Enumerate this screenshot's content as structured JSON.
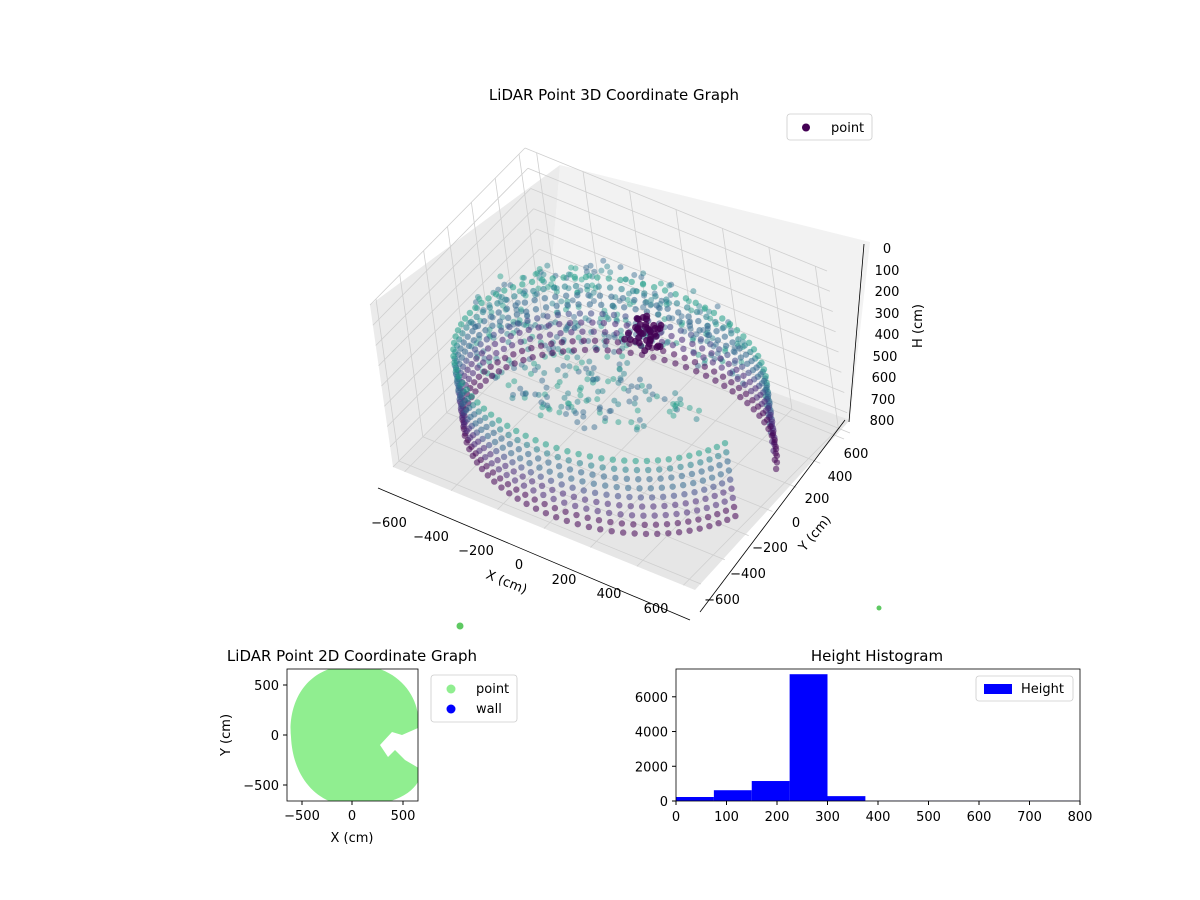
{
  "colors": {
    "point_3d_legend": "#440154",
    "scatter_2d_point": "#90ee90",
    "scatter_2d_wall": "#0000ff",
    "histogram_bar": "#0000ff",
    "stray_marker": "#5ec962"
  },
  "chart_data": [
    {
      "id": "scatter3d",
      "type": "scatter",
      "title": "LiDAR Point 3D Coordinate Graph",
      "xlabel": "X (cm)",
      "ylabel": "Y (cm)",
      "zlabel": "H (cm)",
      "xticks": [
        "−600",
        "−400",
        "−200",
        "0",
        "200",
        "400",
        "600"
      ],
      "yticks": [
        "−600",
        "−400",
        "−200",
        "0",
        "200",
        "400",
        "600"
      ],
      "zticks": [
        "0",
        "100",
        "200",
        "300",
        "400",
        "500",
        "600",
        "700",
        "800"
      ],
      "xlim": [
        -650,
        650
      ],
      "ylim": [
        -650,
        650
      ],
      "zlim": [
        0,
        800
      ],
      "z_inverted": true,
      "grid": true,
      "legend": {
        "position": "top-right",
        "entries": [
          "point"
        ]
      },
      "series": [
        {
          "name": "point",
          "description_shape": "ring of wall points around room perimeter at heights ~0-370 cm, interior floor points at ~250-300 cm, cluster near center at ~200 cm"
        }
      ]
    },
    {
      "id": "scatter2d",
      "type": "scatter",
      "title": "LiDAR Point 2D Coordinate Graph",
      "xlabel": "X (cm)",
      "ylabel": "Y (cm)",
      "xticks": [
        "−500",
        "0",
        "500"
      ],
      "yticks": [
        "500",
        "0",
        "−500"
      ],
      "xlim": [
        -650,
        650
      ],
      "ylim": [
        -650,
        650
      ],
      "legend": {
        "position": "outside-right",
        "entries": [
          "point",
          "wall"
        ]
      },
      "series": [
        {
          "name": "point",
          "shape": "filled disc radius ~600 cm with notch on right side"
        },
        {
          "name": "wall"
        }
      ]
    },
    {
      "id": "histogram",
      "type": "bar",
      "title": "Height Histogram",
      "xlabel": "",
      "ylabel": "",
      "xticks": [
        "0",
        "100",
        "200",
        "300",
        "400",
        "500",
        "600",
        "700",
        "800"
      ],
      "yticks": [
        "0",
        "2000",
        "4000",
        "6000"
      ],
      "xlim": [
        0,
        800
      ],
      "ylim": [
        0,
        7600
      ],
      "legend": {
        "position": "top-right",
        "entries": [
          "Height"
        ]
      },
      "bins": [
        {
          "x0": 0,
          "x1": 75,
          "value": 230
        },
        {
          "x0": 75,
          "x1": 150,
          "value": 620
        },
        {
          "x0": 150,
          "x1": 225,
          "value": 1150
        },
        {
          "x0": 225,
          "x1": 300,
          "value": 7300
        },
        {
          "x0": 300,
          "x1": 375,
          "value": 280
        },
        {
          "x0": 375,
          "x1": 450,
          "value": 10
        },
        {
          "x0": 450,
          "x1": 525,
          "value": 10
        },
        {
          "x0": 525,
          "x1": 600,
          "value": 10
        },
        {
          "x0": 600,
          "x1": 675,
          "value": 10
        },
        {
          "x0": 675,
          "x1": 750,
          "value": 10
        },
        {
          "x0": 750,
          "x1": 800,
          "value": 10
        }
      ]
    }
  ]
}
